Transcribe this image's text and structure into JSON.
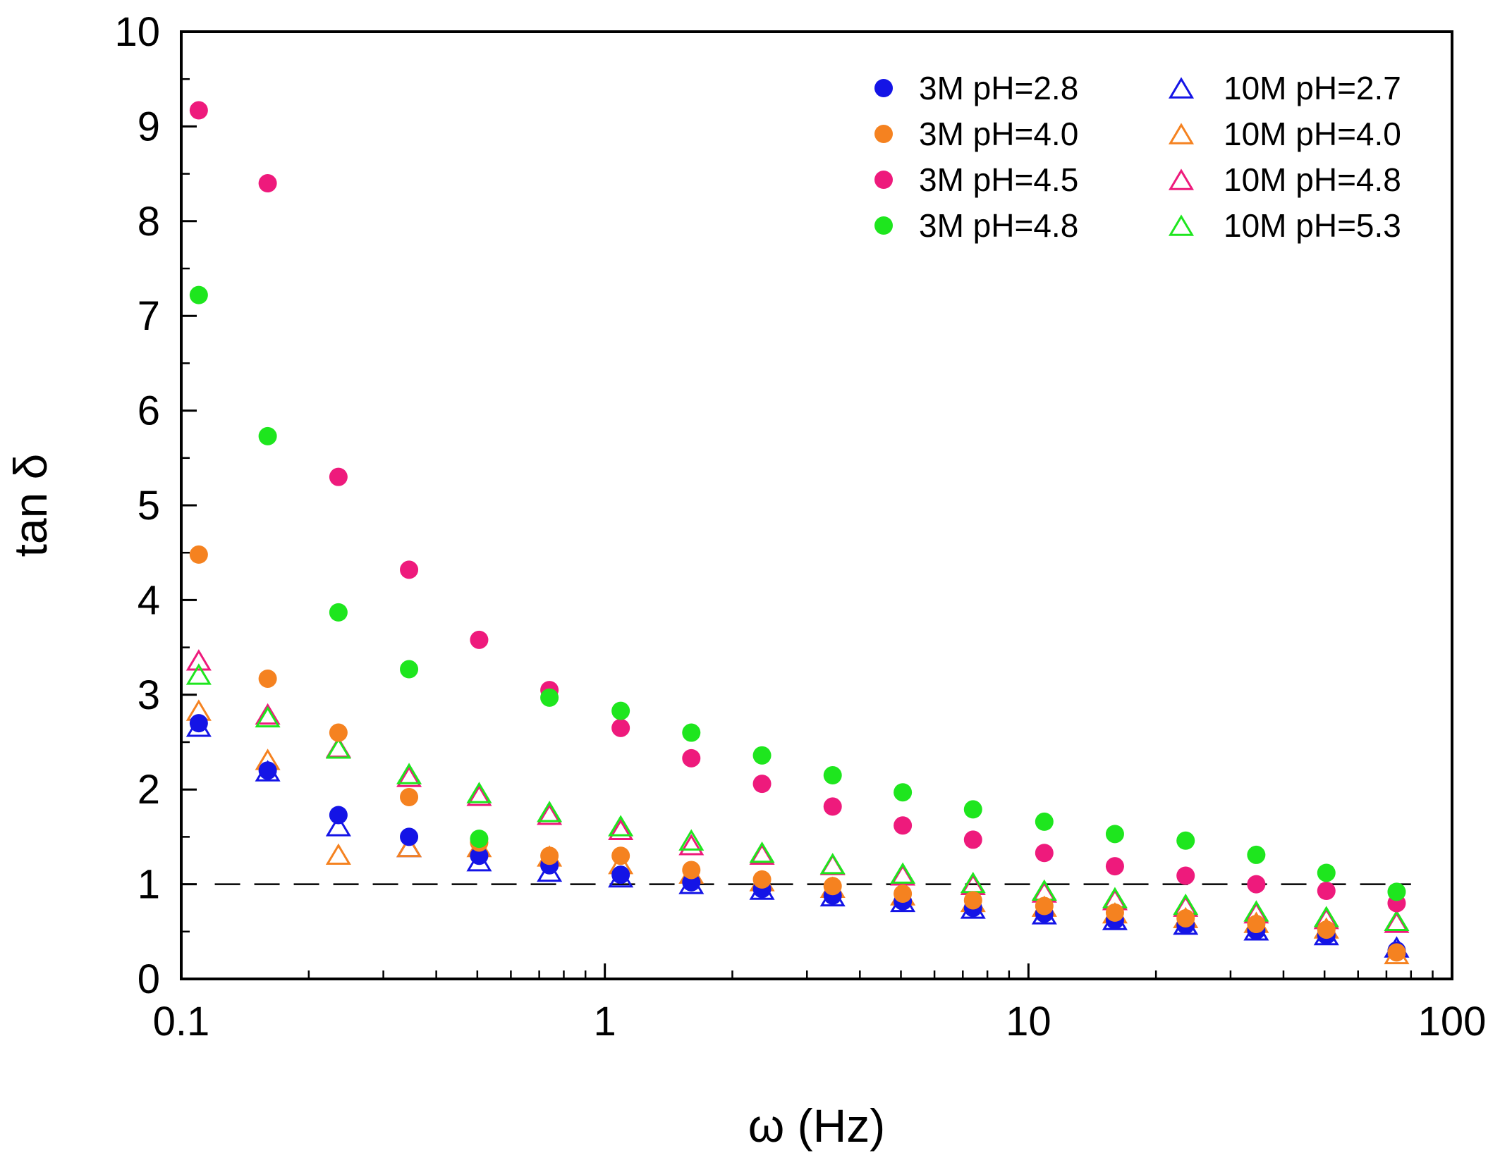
{
  "chart_data": {
    "type": "scatter",
    "xlabel": "ω (Hz)",
    "ylabel": "tan δ",
    "xscale": "log",
    "xlim": [
      0.1,
      100
    ],
    "ylim": [
      0,
      10
    ],
    "grid": false,
    "legend_position": "top-right",
    "x_tick_labels": [
      "0.1",
      "1",
      "10",
      "100"
    ],
    "y_tick_labels": [
      "0",
      "1",
      "2",
      "3",
      "4",
      "5",
      "6",
      "7",
      "8",
      "9",
      "10"
    ],
    "reference_line": {
      "y": 1,
      "style": "dashed",
      "color": "#000000"
    },
    "x": [
      0.11,
      0.16,
      0.235,
      0.345,
      0.505,
      0.74,
      1.09,
      1.6,
      2.35,
      3.45,
      5.05,
      7.4,
      10.9,
      16,
      23.5,
      34.5,
      50.5,
      74
    ],
    "series": [
      {
        "name": "3M pH=2.8",
        "marker": "circle",
        "filled": true,
        "color": "#1414e6",
        "values": [
          2.7,
          2.2,
          1.73,
          1.5,
          1.3,
          1.2,
          1.1,
          1.02,
          0.95,
          0.88,
          0.82,
          0.75,
          0.69,
          0.62,
          0.57,
          0.51,
          0.46,
          0.3
        ]
      },
      {
        "name": "3M pH=4.0",
        "marker": "circle",
        "filled": true,
        "color": "#f58220",
        "values": [
          4.48,
          3.17,
          2.6,
          1.92,
          1.44,
          1.3,
          1.3,
          1.15,
          1.05,
          0.98,
          0.9,
          0.83,
          0.77,
          0.7,
          0.64,
          0.58,
          0.52,
          0.28
        ]
      },
      {
        "name": "3M pH=4.5",
        "marker": "circle",
        "filled": true,
        "color": "#ee1a7c",
        "values": [
          9.17,
          8.4,
          5.3,
          4.32,
          3.58,
          3.05,
          2.65,
          2.33,
          2.06,
          1.82,
          1.62,
          1.47,
          1.33,
          1.19,
          1.09,
          1.0,
          0.93,
          0.8
        ]
      },
      {
        "name": "3M pH=4.8",
        "marker": "circle",
        "filled": true,
        "color": "#1ee61e",
        "values": [
          7.22,
          5.73,
          3.87,
          3.27,
          1.48,
          2.97,
          2.83,
          2.6,
          2.36,
          2.15,
          1.97,
          1.79,
          1.66,
          1.53,
          1.46,
          1.31,
          1.12,
          0.92
        ]
      },
      {
        "name": "10M pH=2.7",
        "marker": "triangle",
        "filled": false,
        "color": "#1414e6",
        "values": [
          2.65,
          2.18,
          1.6,
          1.38,
          1.23,
          1.12,
          1.06,
          0.99,
          0.93,
          0.86,
          0.8,
          0.73,
          0.67,
          0.61,
          0.56,
          0.5,
          0.45,
          0.32
        ]
      },
      {
        "name": "10M pH=4.0",
        "marker": "triangle",
        "filled": false,
        "color": "#f58220",
        "values": [
          2.82,
          2.3,
          1.3,
          1.38,
          1.38,
          1.28,
          1.2,
          1.1,
          1.02,
          0.95,
          0.87,
          0.8,
          0.75,
          0.68,
          0.63,
          0.58,
          0.52,
          0.25
        ]
      },
      {
        "name": "10M pH=4.8",
        "marker": "triangle",
        "filled": false,
        "color": "#ee1a7c",
        "values": [
          3.35,
          2.78,
          2.43,
          2.12,
          1.92,
          1.72,
          1.56,
          1.4,
          1.3,
          1.19,
          1.08,
          0.98,
          0.9,
          0.82,
          0.75,
          0.68,
          0.62,
          0.58
        ]
      },
      {
        "name": "10M pH=5.3",
        "marker": "triangle",
        "filled": false,
        "color": "#1ee61e",
        "values": [
          3.2,
          2.75,
          2.42,
          2.15,
          1.95,
          1.75,
          1.6,
          1.45,
          1.32,
          1.2,
          1.1,
          1.0,
          0.92,
          0.84,
          0.77,
          0.7,
          0.64,
          0.6
        ]
      }
    ]
  }
}
